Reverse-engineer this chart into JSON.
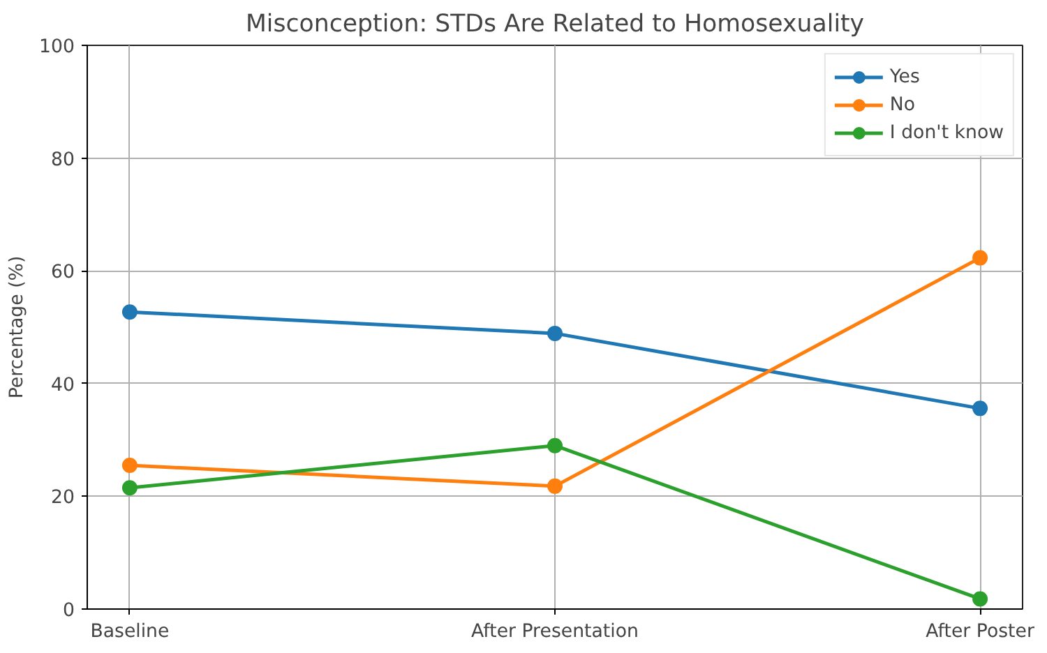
{
  "chart_data": {
    "type": "line",
    "title": "Misconception: STDs Are Related to Homosexuality",
    "ylabel": "Percentage (%)",
    "categories": [
      "Baseline",
      "After Presentation",
      "After Poster"
    ],
    "series": [
      {
        "name": "Yes",
        "color": "#1f77b4",
        "values": [
          52.7,
          48.9,
          35.6
        ]
      },
      {
        "name": "No",
        "color": "#ff7f0e",
        "values": [
          25.5,
          21.8,
          62.3
        ]
      },
      {
        "name": "I don't know",
        "color": "#2ca02c",
        "values": [
          21.5,
          29.0,
          1.8
        ]
      }
    ],
    "ylim": [
      0,
      100
    ],
    "yticks": [
      0,
      20,
      40,
      60,
      80,
      100
    ],
    "grid": true,
    "legend": "top right",
    "marker": "circle",
    "line_style": "solid"
  }
}
